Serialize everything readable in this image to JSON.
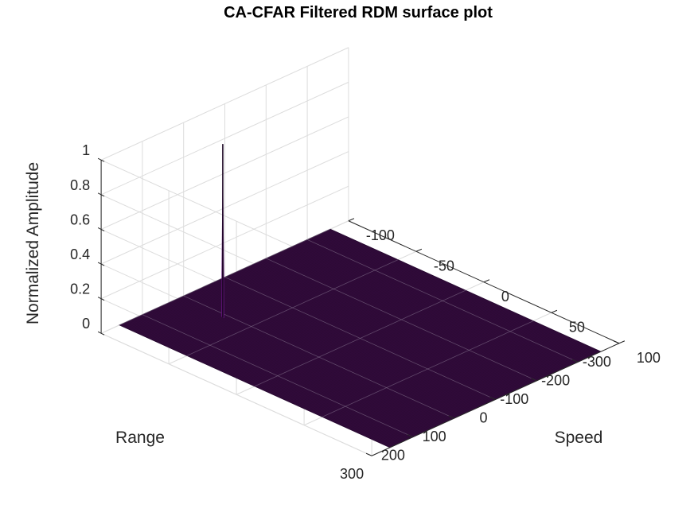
{
  "chart_data": {
    "type": "surface",
    "title": "CA-CFAR Filtered RDM surface plot",
    "xlabel": "Speed",
    "ylabel": "Range",
    "zlabel": "Normalized Amplitude",
    "xlim": [
      -100,
      100
    ],
    "ylim": [
      -300,
      300
    ],
    "zlim": [
      0,
      1
    ],
    "x_ticks": [
      "-100",
      "-50",
      "0",
      "50",
      "100"
    ],
    "y_ticks": [
      "-300",
      "-200",
      "-100",
      "0",
      "100",
      "200",
      "300"
    ],
    "z_ticks": [
      "0",
      "0.2",
      "0.4",
      "0.6",
      "0.8",
      "1"
    ],
    "grid": true,
    "colormap": [
      "#2d0a35",
      "#3a0d4a",
      "#5a1470"
    ],
    "surface_extent": {
      "x": [
        -100,
        100
      ],
      "y": [
        -256,
        256
      ]
    },
    "peaks": [
      {
        "x": -68,
        "y": 110,
        "z": 1.0
      }
    ]
  }
}
